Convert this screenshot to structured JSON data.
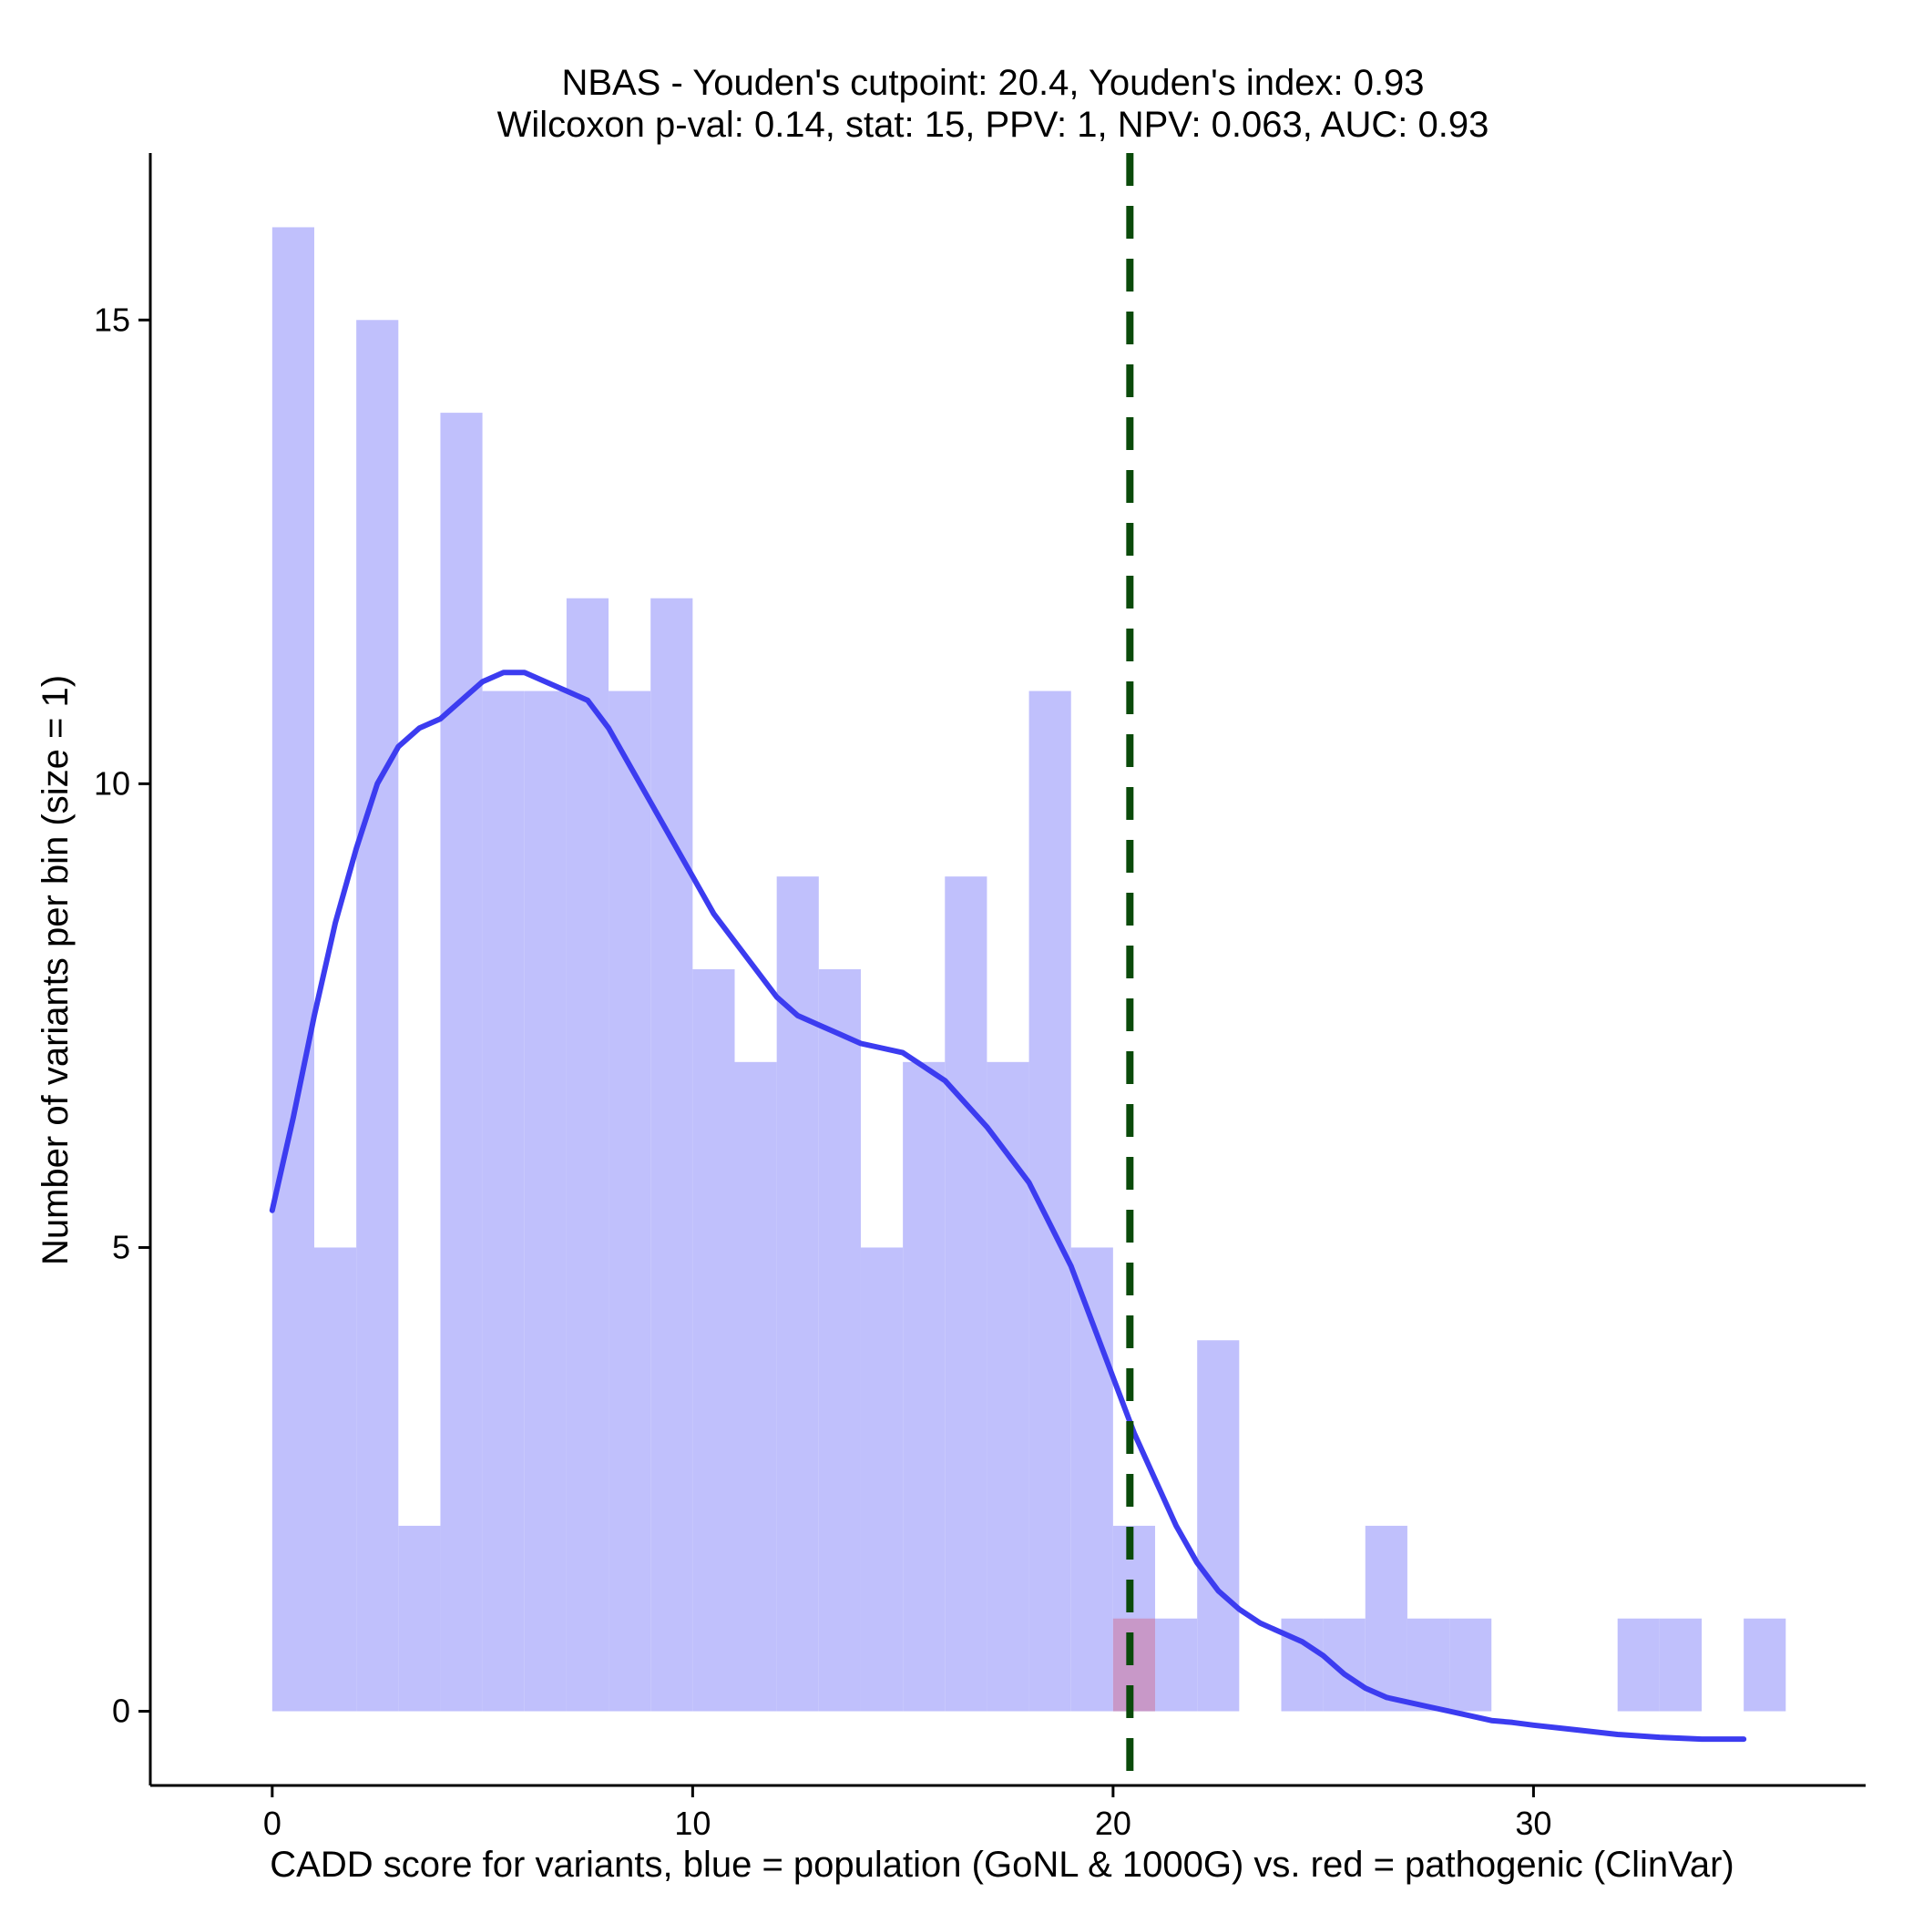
{
  "chart_data": {
    "type": "bar",
    "title": "NBAS - Youden's cutpoint: 20.4, Youden's index: 0.93",
    "subtitle": "Wilcoxon p-val: 0.14, stat: 15, PPV: 1, NPV: 0.063, AUC: 0.93",
    "xlabel": "CADD score for variants, blue = population (GoNL & 1000G) vs. red = pathogenic (ClinVar)",
    "ylabel": "Number of variants per bin (size = 1)",
    "xlim": [
      -2.9,
      37.9
    ],
    "ylim": [
      -0.8,
      16.8
    ],
    "xticks": [
      0,
      10,
      20,
      30
    ],
    "yticks": [
      0,
      5,
      10,
      15
    ],
    "bin_width": 1,
    "cutpoint": 20.4,
    "colors": {
      "population": "#c0c0fc",
      "pathogenic": "#c898c8",
      "density_line": "#3c3cf0",
      "cutpoint_line": "#0a4a0a"
    },
    "series": [
      {
        "name": "population",
        "bins": [
          {
            "x0": 0,
            "count": 16
          },
          {
            "x0": 1,
            "count": 5
          },
          {
            "x0": 2,
            "count": 15
          },
          {
            "x0": 3,
            "count": 2
          },
          {
            "x0": 4,
            "count": 14
          },
          {
            "x0": 5,
            "count": 11
          },
          {
            "x0": 6,
            "count": 11
          },
          {
            "x0": 7,
            "count": 12
          },
          {
            "x0": 8,
            "count": 11
          },
          {
            "x0": 9,
            "count": 12
          },
          {
            "x0": 10,
            "count": 8
          },
          {
            "x0": 11,
            "count": 7
          },
          {
            "x0": 12,
            "count": 9
          },
          {
            "x0": 13,
            "count": 8
          },
          {
            "x0": 14,
            "count": 5
          },
          {
            "x0": 15,
            "count": 7
          },
          {
            "x0": 16,
            "count": 9
          },
          {
            "x0": 17,
            "count": 7
          },
          {
            "x0": 18,
            "count": 11
          },
          {
            "x0": 19,
            "count": 5
          },
          {
            "x0": 20,
            "count": 2
          },
          {
            "x0": 21,
            "count": 1
          },
          {
            "x0": 22,
            "count": 4
          },
          {
            "x0": 24,
            "count": 1
          },
          {
            "x0": 25,
            "count": 1
          },
          {
            "x0": 26,
            "count": 2
          },
          {
            "x0": 27,
            "count": 1
          },
          {
            "x0": 28,
            "count": 1
          },
          {
            "x0": 32,
            "count": 1
          },
          {
            "x0": 33,
            "count": 1
          },
          {
            "x0": 35,
            "count": 1
          }
        ]
      },
      {
        "name": "pathogenic",
        "bins": [
          {
            "x0": 20,
            "count": 1
          }
        ]
      }
    ],
    "density": {
      "x": [
        0,
        0.5,
        1,
        1.5,
        2,
        2.5,
        3,
        3.5,
        4,
        4.5,
        5,
        5.5,
        6,
        6.5,
        7,
        7.5,
        8,
        8.5,
        9,
        9.5,
        10,
        10.5,
        11,
        11.5,
        12,
        12.5,
        13,
        13.5,
        14,
        14.5,
        15,
        15.5,
        16,
        16.5,
        17,
        17.5,
        18,
        18.5,
        19,
        19.5,
        20,
        20.5,
        21,
        21.5,
        22,
        22.5,
        23,
        23.5,
        24,
        24.5,
        25,
        25.5,
        26,
        26.5,
        27,
        27.5,
        28,
        28.5,
        29,
        29.5,
        30,
        31,
        32,
        33,
        34,
        35
      ],
      "y": [
        5.4,
        6.4,
        7.5,
        8.5,
        9.3,
        10.0,
        10.4,
        10.6,
        10.7,
        10.9,
        11.1,
        11.2,
        11.2,
        11.1,
        11.0,
        10.9,
        10.6,
        10.2,
        9.8,
        9.4,
        9.0,
        8.6,
        8.3,
        8.0,
        7.7,
        7.5,
        7.4,
        7.3,
        7.2,
        7.15,
        7.1,
        6.95,
        6.8,
        6.55,
        6.3,
        6.0,
        5.7,
        5.25,
        4.8,
        4.2,
        3.6,
        3.0,
        2.5,
        2.0,
        1.6,
        1.3,
        1.1,
        0.95,
        0.85,
        0.75,
        0.6,
        0.4,
        0.25,
        0.15,
        0.1,
        0.05,
        0,
        -0.05,
        -0.1,
        -0.12,
        -0.15,
        -0.2,
        -0.25,
        -0.28,
        -0.3,
        -0.3
      ]
    }
  }
}
